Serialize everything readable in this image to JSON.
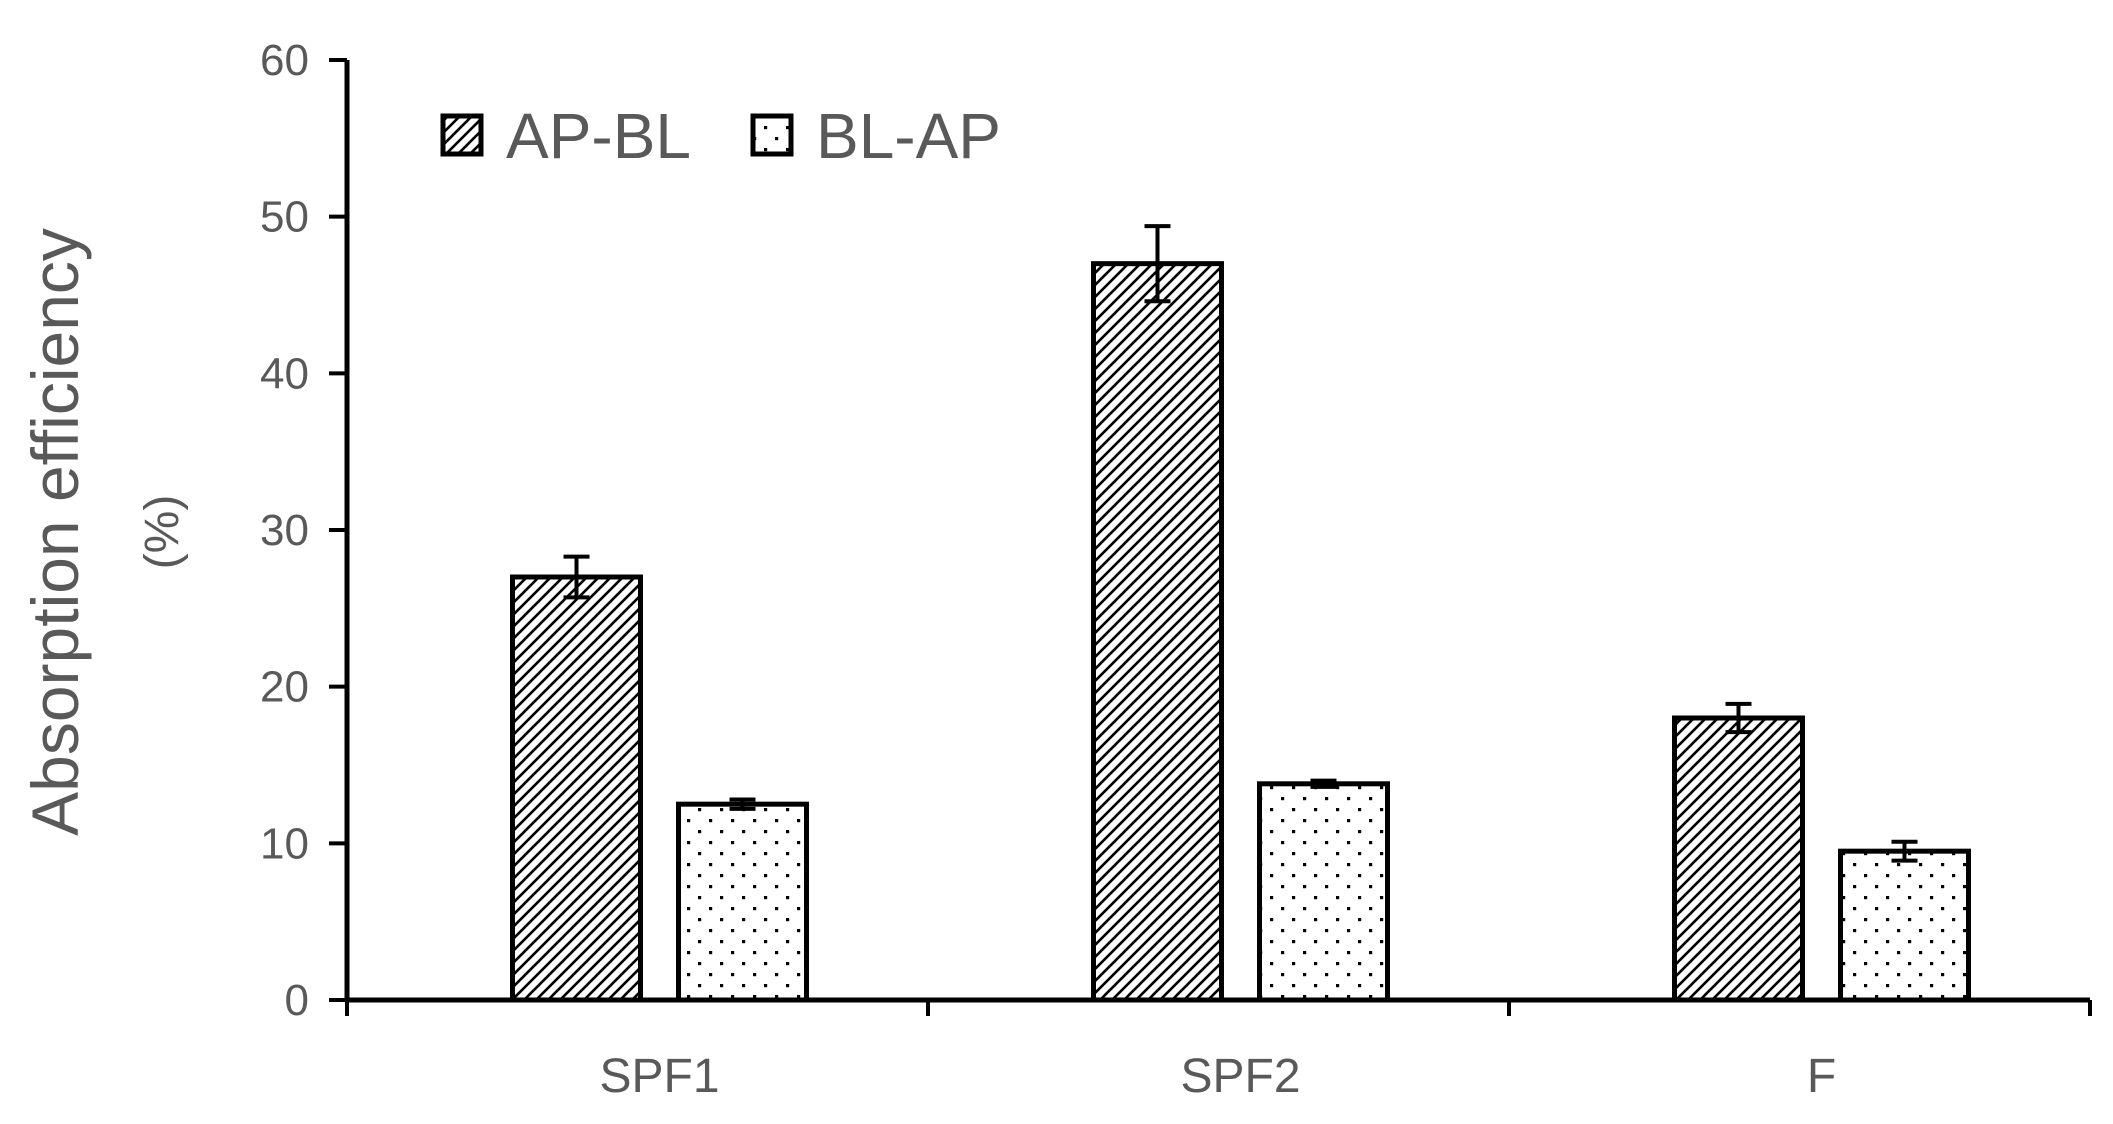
{
  "chart_data": {
    "type": "bar",
    "categories": [
      "SPF1",
      "SPF2",
      "F"
    ],
    "series": [
      {
        "name": "AP-BL",
        "values": [
          27,
          47,
          18
        ],
        "errors": [
          1.3,
          2.4,
          0.9
        ],
        "pattern": "diagonal-hatch"
      },
      {
        "name": "BL-AP",
        "values": [
          12.5,
          13.8,
          9.5
        ],
        "errors": [
          0.3,
          0.2,
          0.6
        ],
        "pattern": "dots"
      }
    ],
    "title": "",
    "xlabel": "",
    "ylabel": "Absorption efficiency",
    "ylabel_unit": "(%)",
    "ylim": [
      0,
      60
    ],
    "yticks": [
      0,
      10,
      20,
      30,
      40,
      50,
      60
    ],
    "grid": false,
    "legend_position": "top-left",
    "colors": {
      "bar_stroke": "#000000",
      "axis": "#000000",
      "text": "#595959",
      "background": "#ffffff"
    }
  }
}
